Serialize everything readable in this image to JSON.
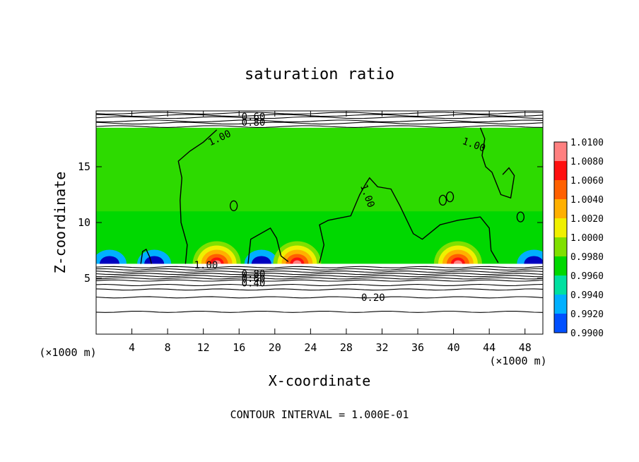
{
  "chart_data": {
    "type": "heatmap",
    "title": "saturation ratio",
    "xlabel": "X-coordinate",
    "ylabel": "Z-coordinate",
    "x_unit": "(×1000 m)",
    "z_unit": "(×1000 m)",
    "xlim": [
      0,
      50
    ],
    "ylim": [
      0,
      20
    ],
    "x_ticks": [
      4,
      8,
      12,
      16,
      20,
      24,
      28,
      32,
      36,
      40,
      44,
      48
    ],
    "y_ticks": [
      5,
      10,
      15
    ],
    "colorbar": {
      "levels": [
        "1.0100",
        "1.0080",
        "1.0060",
        "1.0040",
        "1.0020",
        "1.0000",
        "0.9980",
        "0.9960",
        "0.9940",
        "0.9920",
        "0.9900"
      ],
      "colors": [
        "#ff8080",
        "#ff1010",
        "#ff6000",
        "#ffb000",
        "#f0f000",
        "#80e000",
        "#00d800",
        "#00e0a0",
        "#00b0ff",
        "#0050ff",
        "#0000c0",
        "#400090"
      ]
    },
    "contour_labels": [
      "0.60",
      "0.80",
      "1.00",
      "1.00",
      "1.00",
      "1.00",
      "0.80",
      "0.60",
      "0.40",
      "0.20"
    ],
    "cloud_layer_z": [
      6.3,
      18.5
    ],
    "warm_spots_x": [
      13.5,
      22.5,
      40.5
    ],
    "cold_spots_x": [
      1.5,
      6.5,
      18.5,
      49
    ]
  },
  "footer": "CONTOUR INTERVAL = 1.000E-01"
}
